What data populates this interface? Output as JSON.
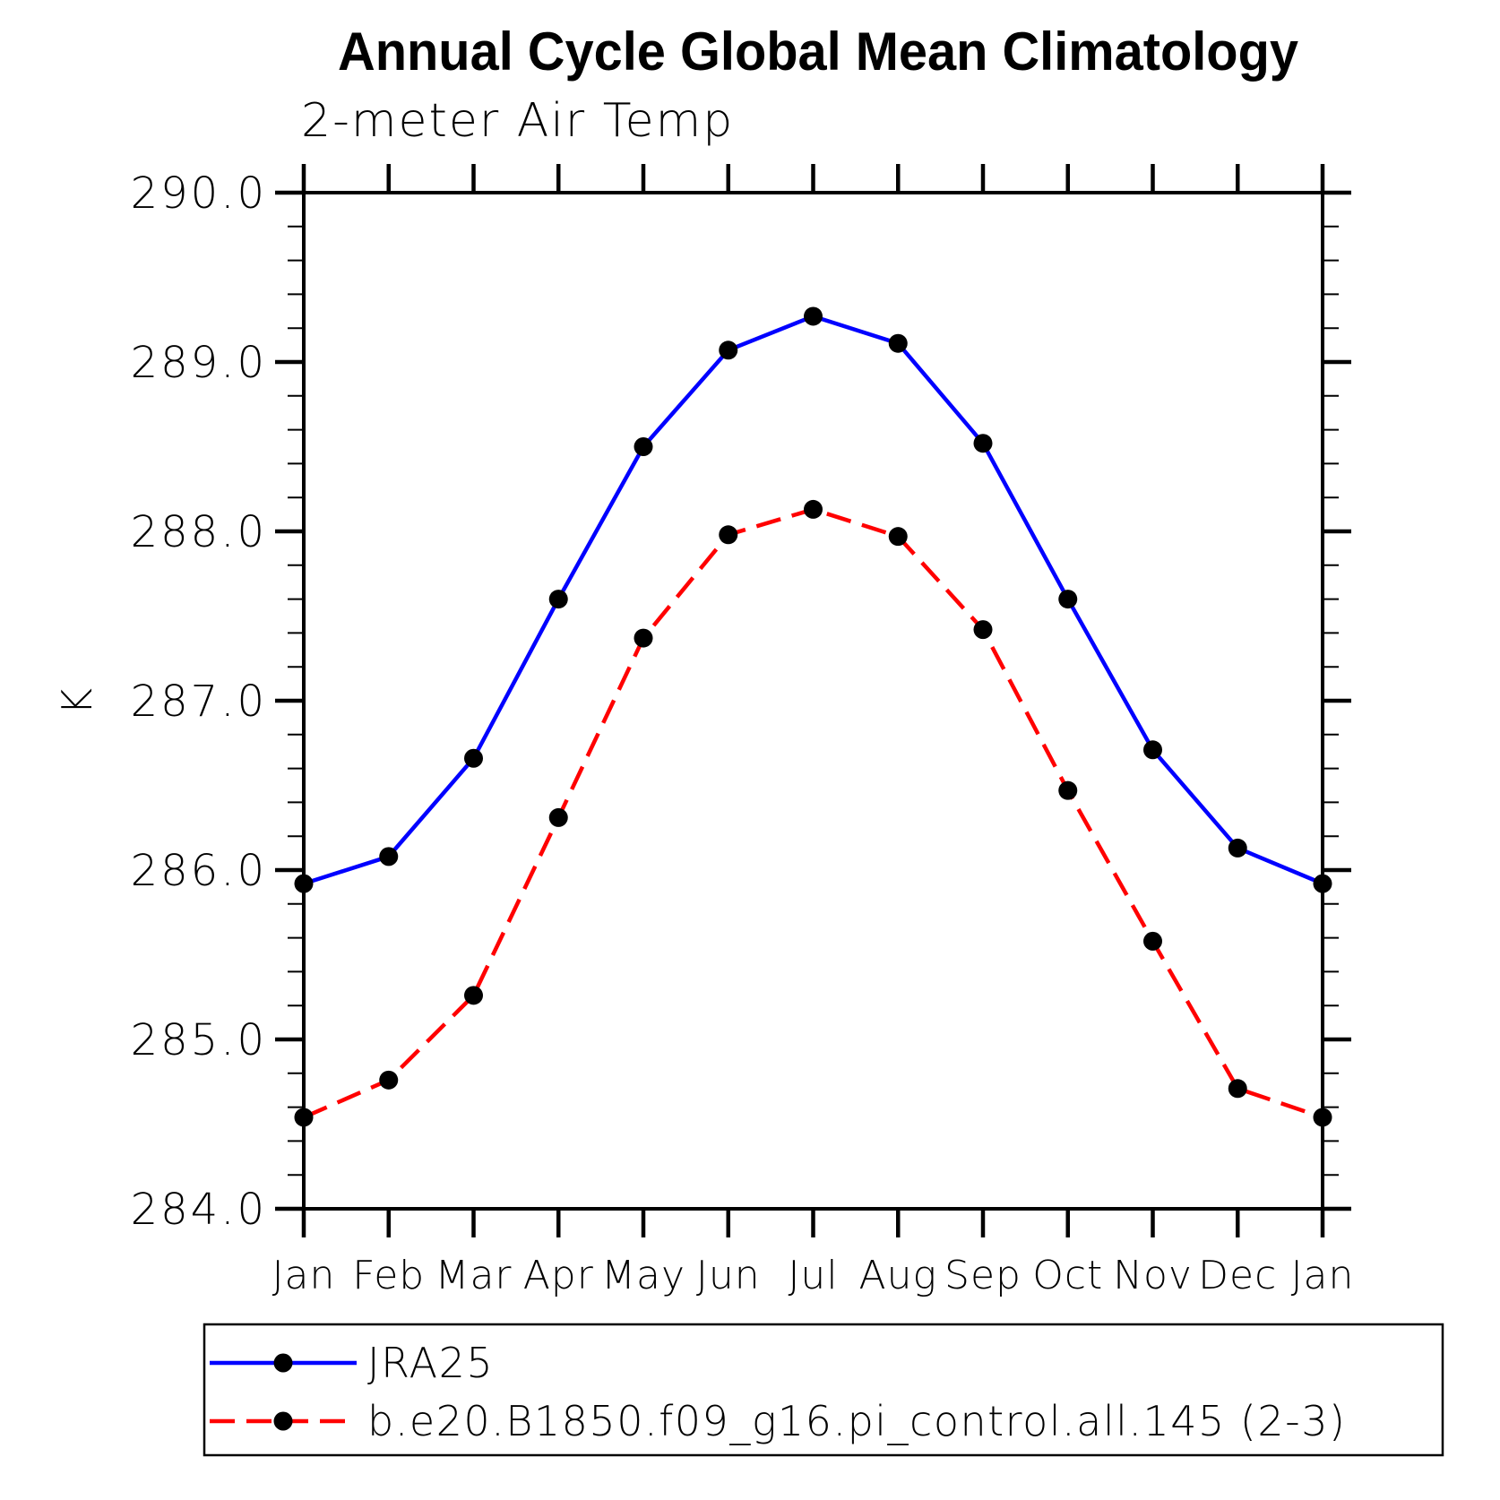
{
  "chart_data": {
    "type": "line",
    "title": "Annual Cycle Global Mean Climatology",
    "subtitle": "2-meter Air Temp",
    "ylabel": "K",
    "categories": [
      "Jan",
      "Feb",
      "Mar",
      "Apr",
      "May",
      "Jun",
      "Jul",
      "Aug",
      "Sep",
      "Oct",
      "Nov",
      "Dec",
      "Jan"
    ],
    "ylim": [
      284.0,
      290.0
    ],
    "ytick_step": 1.0,
    "yminor_step": 0.2,
    "ytick_labels": [
      "290.0",
      "289.0",
      "288.0",
      "287.0",
      "286.0",
      "285.0",
      "284.0"
    ],
    "grid": false,
    "legend_position": "bottom",
    "colors": {
      "axis": "#000000",
      "marker": "#000000",
      "series1": "#0000ff",
      "series2": "#ff0000"
    },
    "series": [
      {
        "name": "JRA25",
        "color": "#0000ff",
        "line_style": "solid",
        "marker": "circle",
        "marker_color": "#000000",
        "values": [
          285.92,
          286.08,
          286.66,
          287.6,
          288.5,
          289.07,
          289.27,
          289.11,
          288.52,
          287.6,
          286.71,
          286.13,
          285.92
        ]
      },
      {
        "name": "b.e20.B1850.f09_g16.pi_control.all.145 (2-3)",
        "color": "#ff0000",
        "line_style": "dashed",
        "marker": "circle",
        "marker_color": "#000000",
        "values": [
          284.54,
          284.76,
          285.26,
          286.31,
          287.37,
          287.98,
          288.13,
          287.97,
          287.42,
          286.47,
          285.58,
          284.71,
          284.54
        ]
      }
    ]
  }
}
